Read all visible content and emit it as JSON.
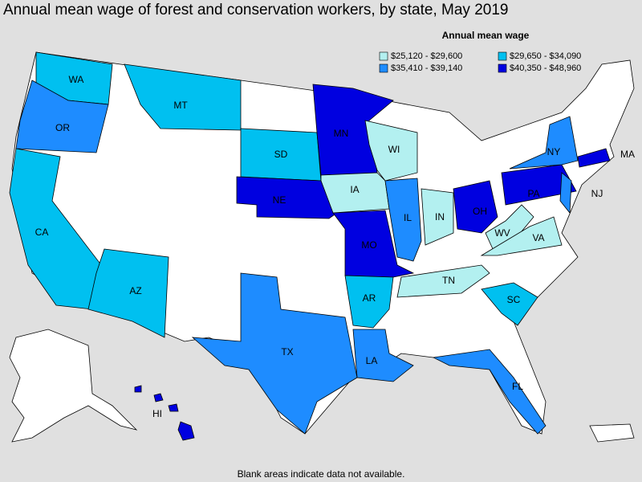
{
  "title": "Annual mean wage of forest and conservation workers, by state, May 2019",
  "legend": {
    "title": "Annual mean wage",
    "items": [
      {
        "label": "$25,120 - $29,600",
        "color": "#b3f0f0"
      },
      {
        "label": "$29,650 - $34,090",
        "color": "#00c0f0"
      },
      {
        "label": "$35,410 - $39,140",
        "color": "#1e8cff"
      },
      {
        "label": "$40,350 - $48,960",
        "color": "#0000e0"
      }
    ]
  },
  "states": [
    {
      "label": "WA",
      "color": "#00c0f0"
    },
    {
      "label": "OR",
      "color": "#1e8cff"
    },
    {
      "label": "CA",
      "color": "#00c0f0"
    },
    {
      "label": "MT",
      "color": "#00c0f0"
    },
    {
      "label": "SD",
      "color": "#00c0f0"
    },
    {
      "label": "MN",
      "color": "#0000e0"
    },
    {
      "label": "NE",
      "color": "#0000e0"
    },
    {
      "label": "MO",
      "color": "#0000e0"
    },
    {
      "label": "WI",
      "color": "#b3f0f0"
    },
    {
      "label": "IA",
      "color": "#b3f0f0"
    },
    {
      "label": "IL",
      "color": "#1e8cff"
    },
    {
      "label": "IN",
      "color": "#b3f0f0"
    },
    {
      "label": "OH",
      "color": "#0000e0"
    },
    {
      "label": "PA",
      "color": "#0000e0"
    },
    {
      "label": "NY",
      "color": "#1e8cff"
    },
    {
      "label": "MA",
      "color": "#0000e0"
    },
    {
      "label": "NJ",
      "color": "#1e8cff"
    },
    {
      "label": "WV",
      "color": "#b3f0f0"
    },
    {
      "label": "VA",
      "color": "#b3f0f0"
    },
    {
      "label": "TN",
      "color": "#b3f0f0"
    },
    {
      "label": "AR",
      "color": "#00c0f0"
    },
    {
      "label": "SC",
      "color": "#00c0f0"
    },
    {
      "label": "LA",
      "color": "#1e8cff"
    },
    {
      "label": "TX",
      "color": "#1e8cff"
    },
    {
      "label": "FL",
      "color": "#1e8cff"
    },
    {
      "label": "AZ",
      "color": "#00c0f0"
    },
    {
      "label": "HI",
      "color": "#0000e0"
    }
  ],
  "footnote": "Blank areas indicate data not available."
}
